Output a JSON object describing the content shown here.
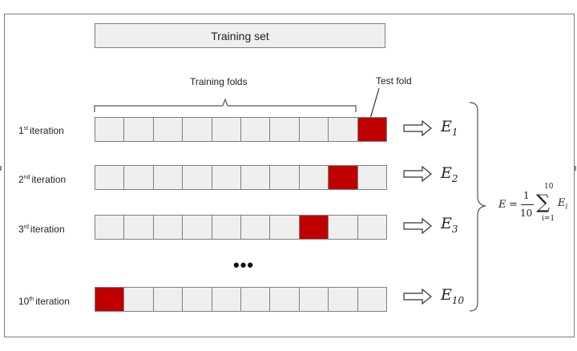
{
  "training_set_label": "Training set",
  "training_folds_label": "Training folds",
  "test_fold_label": "Test fold",
  "ellipsis": "•••",
  "rows": [
    {
      "num": "1",
      "suffix": "st",
      "word": "iteration",
      "err_base": "E",
      "err_sub": "1",
      "test_index": 9
    },
    {
      "num": "2",
      "suffix": "nd",
      "word": "iteration",
      "err_base": "E",
      "err_sub": "2",
      "test_index": 8
    },
    {
      "num": "3",
      "suffix": "rd",
      "word": "iteration",
      "err_base": "E",
      "err_sub": "3",
      "test_index": 7
    },
    {
      "num": "10",
      "suffix": "th",
      "word": "iteration",
      "err_base": "E",
      "err_sub": "10",
      "test_index": 0
    }
  ],
  "formula": {
    "lhs": "E",
    "equals": "=",
    "numerator": "1",
    "denominator": "10",
    "sum_upper": "10",
    "sum_lower": "i=1",
    "sigma": "∑",
    "term": "E",
    "term_sub": "i"
  },
  "colors": {
    "test_fold": "#c00000",
    "fold": "#efefef",
    "border": "#7f7f7f"
  }
}
